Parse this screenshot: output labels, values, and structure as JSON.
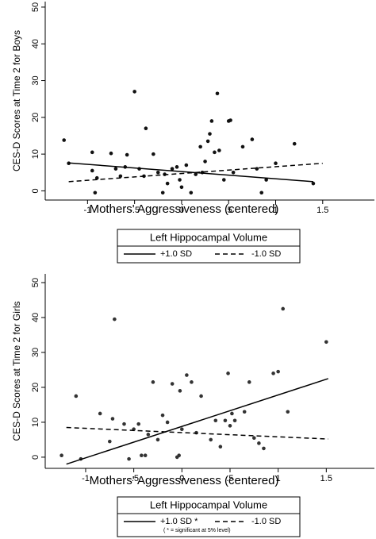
{
  "chart_data": [
    {
      "type": "scatter",
      "x_label": "Mothers' Aggressiveness (centered)",
      "y_label": "CES-D Scores at Time 2 for Boys",
      "xlim": [
        -1.45,
        2.05
      ],
      "ylim": [
        -2.5,
        51.5
      ],
      "xticks": [
        -1,
        {
          "value": -0.5,
          "label": "-.5"
        },
        0,
        {
          "value": 0.5,
          "label": ".5"
        },
        1,
        1.5
      ],
      "yticks": [
        0,
        10,
        20,
        30,
        40,
        50
      ],
      "color": "#111111",
      "points": {
        "x": [
          -1.25,
          -1.2,
          -0.95,
          -0.95,
          -0.92,
          -0.9,
          -0.75,
          -0.7,
          -0.65,
          -0.6,
          -0.58,
          -0.5,
          -0.45,
          -0.4,
          -0.38,
          -0.3,
          -0.25,
          -0.2,
          -0.18,
          -0.15,
          -0.1,
          -0.05,
          -0.02,
          0.0,
          0.05,
          0.1,
          0.15,
          0.2,
          0.22,
          0.25,
          0.28,
          0.3,
          0.32,
          0.35,
          0.38,
          0.4,
          0.45,
          0.5,
          0.52,
          0.55,
          0.65,
          0.75,
          0.8,
          0.85,
          0.9,
          1.0,
          1.2,
          1.4
        ],
        "y": [
          13.8,
          7.5,
          10.5,
          5.5,
          -0.5,
          3.5,
          10.2,
          6,
          4,
          6.5,
          9.8,
          27,
          6,
          4,
          17,
          10,
          5,
          -0.5,
          4.5,
          2,
          6,
          6.5,
          3,
          1,
          7,
          -0.5,
          4.5,
          12,
          5,
          8,
          13.5,
          15.5,
          19,
          10.5,
          26.5,
          11,
          3,
          19,
          19.2,
          5,
          12,
          14,
          6,
          -0.5,
          3,
          7.5,
          12.8,
          2
        ]
      },
      "legend_title": "Left Hippocampal Volume",
      "series": [
        {
          "name": "+1.0 SD",
          "dashed": false,
          "x": [
            -1.2,
            1.4
          ],
          "values": [
            7.6,
            2.5
          ]
        },
        {
          "name": "-1.0 SD",
          "dashed": true,
          "x": [
            -1.2,
            1.5
          ],
          "values": [
            2.5,
            7.5
          ]
        }
      ]
    },
    {
      "type": "scatter",
      "x_label": "Mothers' Aggressiveness (centered)",
      "y_label": "CES-D Scores at Time 2 for Girls",
      "xlim": [
        -1.42,
        2.0
      ],
      "ylim": [
        -3.2,
        52.5
      ],
      "xticks": [
        -1,
        {
          "value": -0.5,
          "label": "-.5"
        },
        0,
        {
          "value": 0.5,
          "label": ".5"
        },
        1,
        1.5
      ],
      "yticks": [
        0,
        10,
        20,
        30,
        40,
        50
      ],
      "color": "#333333",
      "points": {
        "x": [
          -1.25,
          -1.1,
          -1.05,
          -0.85,
          -0.75,
          -0.72,
          -0.7,
          -0.6,
          -0.55,
          -0.5,
          -0.45,
          -0.42,
          -0.38,
          -0.35,
          -0.3,
          -0.25,
          -0.2,
          -0.15,
          -0.1,
          -0.05,
          -0.03,
          -0.02,
          0,
          0.05,
          0.1,
          0.15,
          0.2,
          0.3,
          0.35,
          0.4,
          0.45,
          0.48,
          0.5,
          0.52,
          0.55,
          0.65,
          0.7,
          0.75,
          0.8,
          0.85,
          0.95,
          1.0,
          1.05,
          1.1,
          1.5
        ],
        "y": [
          0.5,
          17.5,
          -0.5,
          12.5,
          4.5,
          11,
          39.5,
          9.5,
          -0.5,
          8,
          9.5,
          0.5,
          0.5,
          6.5,
          21.5,
          5,
          12,
          10,
          21,
          0,
          0.5,
          19,
          8,
          23.5,
          21.5,
          7,
          17.5,
          5,
          10.5,
          3,
          10.5,
          24,
          9,
          12.5,
          10.5,
          13,
          21.5,
          5.5,
          4,
          2.5,
          24,
          24.5,
          42.5,
          13,
          33
        ]
      },
      "legend_title": "Left Hippocampal Volume",
      "legend_note": "( * = significant at 5% level)",
      "series": [
        {
          "name": "+1.0 SD *",
          "dashed": false,
          "x": [
            -1.2,
            1.52
          ],
          "values": [
            -2,
            22.5
          ]
        },
        {
          "name": "-1.0 SD",
          "dashed": true,
          "x": [
            -1.2,
            1.52
          ],
          "values": [
            8.5,
            5.2
          ]
        }
      ]
    }
  ]
}
